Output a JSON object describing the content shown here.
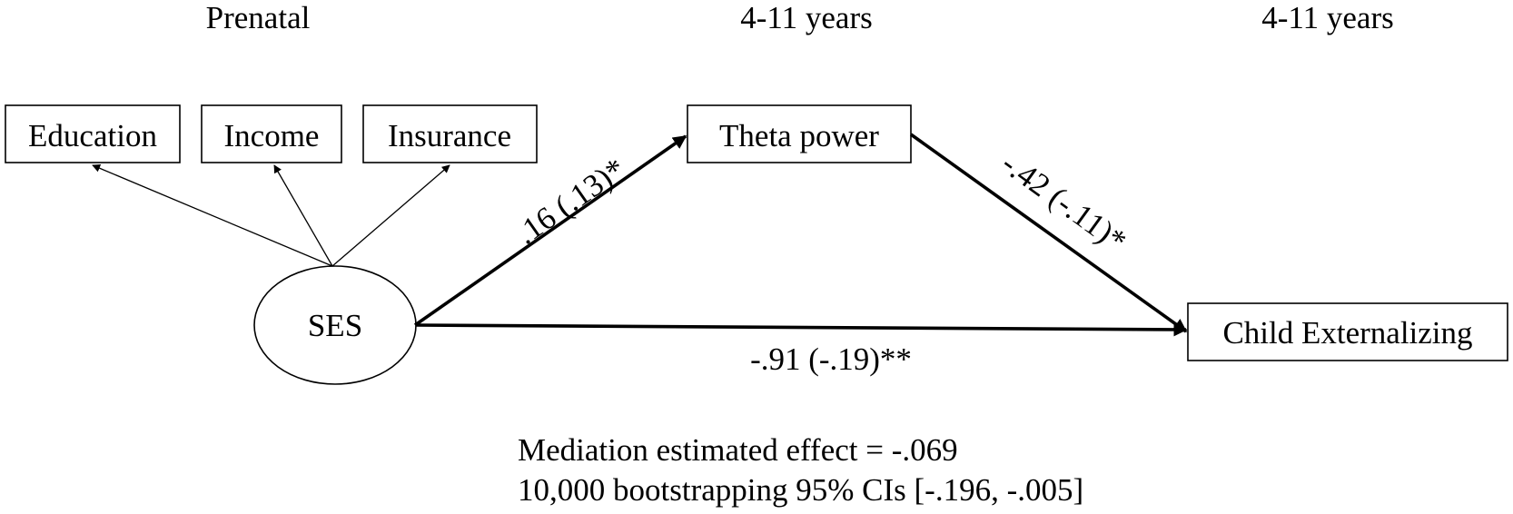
{
  "headers": {
    "prenatal": "Prenatal",
    "mediator_age": "4-11 years",
    "outcome_age": "4-11 years"
  },
  "nodes": {
    "education": "Education",
    "income": "Income",
    "insurance": "Insurance",
    "ses": "SES",
    "theta": "Theta power",
    "externalizing": "Child Externalizing"
  },
  "paths": {
    "a_path": ".16 (.13)*",
    "b_path": "-.42 (-.11)*",
    "c_path": "-.91 (-.19)**"
  },
  "note": {
    "effect": "Mediation estimated effect = -.069",
    "ci": "10,000 bootstrapping 95% CIs [-.196, -.005]"
  }
}
